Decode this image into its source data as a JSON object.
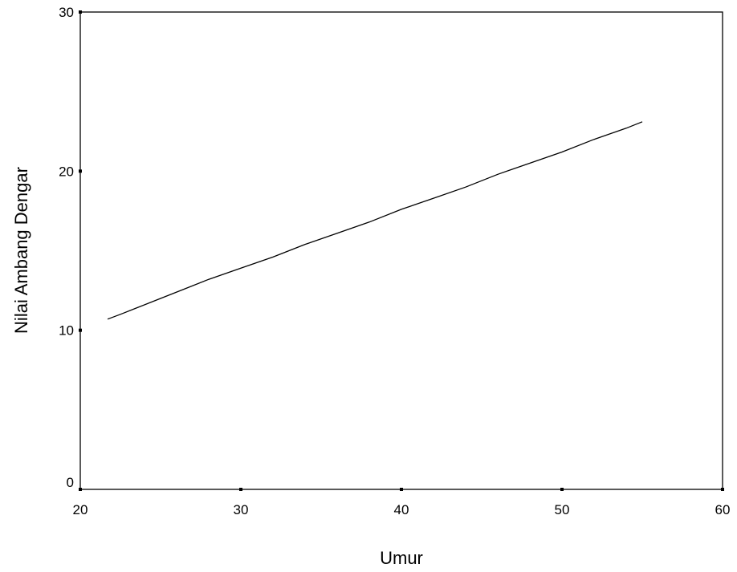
{
  "chart_data": {
    "type": "line",
    "title": "",
    "xlabel": "Umur",
    "ylabel": "Nilai Ambang Dengar",
    "xlim": [
      20,
      60
    ],
    "ylim": [
      0,
      30
    ],
    "xticks": [
      "20",
      "30",
      "40",
      "50",
      "60"
    ],
    "yticks": [
      "0",
      "10",
      "20",
      "30"
    ],
    "grid": false,
    "legend": "none",
    "line_color": "#000000",
    "series": [
      {
        "x": [
          21.7,
          22.5,
          23.5,
          25,
          26.5,
          28,
          30,
          32,
          34,
          36,
          38,
          40,
          42,
          44,
          46,
          48,
          50,
          52,
          54,
          55
        ],
        "y": [
          10.7,
          11.0,
          11.4,
          12.0,
          12.6,
          13.2,
          13.9,
          14.6,
          15.4,
          16.1,
          16.8,
          17.6,
          18.3,
          19.0,
          19.8,
          20.5,
          21.2,
          22.0,
          22.7,
          23.1
        ]
      }
    ]
  }
}
